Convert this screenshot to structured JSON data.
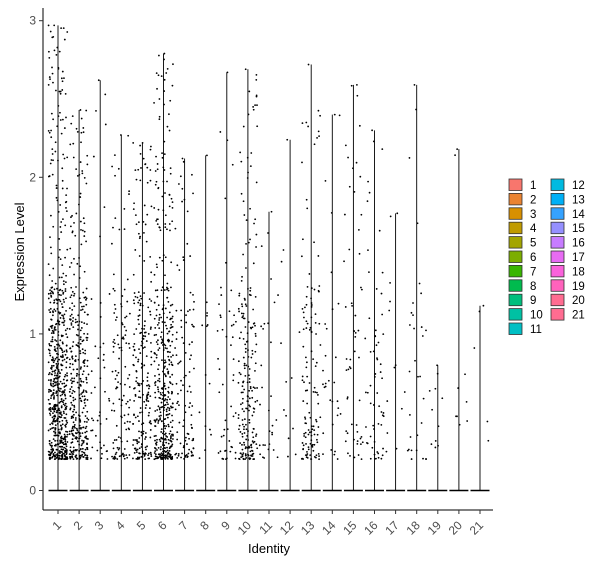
{
  "chart_data": {
    "type": "violin",
    "xlabel": "Identity",
    "ylabel": "Expression Level",
    "ylim": [
      -0.15,
      3.08
    ],
    "yticks": [
      "0",
      "1",
      "2",
      "3"
    ],
    "categories": [
      "1",
      "2",
      "3",
      "4",
      "5",
      "6",
      "7",
      "8",
      "9",
      "10",
      "11",
      "12",
      "13",
      "14",
      "15",
      "16",
      "17",
      "18",
      "19",
      "20",
      "21"
    ],
    "max_values": [
      2.97,
      2.43,
      2.62,
      2.27,
      2.22,
      2.79,
      2.12,
      2.14,
      2.67,
      2.69,
      1.78,
      2.24,
      2.72,
      2.4,
      2.59,
      2.3,
      1.77,
      2.59,
      0.8,
      2.18,
      1.18
    ],
    "point_counts": [
      650,
      360,
      45,
      120,
      230,
      420,
      110,
      14,
      50,
      220,
      30,
      12,
      130,
      30,
      55,
      60,
      12,
      30,
      10,
      8,
      4
    ],
    "legend": {
      "entries": [
        "1",
        "2",
        "3",
        "4",
        "5",
        "6",
        "7",
        "8",
        "9",
        "10",
        "11",
        "12",
        "13",
        "14",
        "15",
        "16",
        "17",
        "18",
        "19",
        "20",
        "21"
      ],
      "colors": [
        "#F8766D",
        "#EA8331",
        "#D89000",
        "#C09B00",
        "#A3A500",
        "#7CAE00",
        "#39B600",
        "#00BB4E",
        "#00BF7D",
        "#00C1A3",
        "#00BFC4",
        "#00BAE0",
        "#00B0F6",
        "#35A2FF",
        "#9590FF",
        "#C77CFF",
        "#E76BF3",
        "#FA62DB",
        "#FF62BC",
        "#FF6C91",
        "#FF6C91"
      ]
    },
    "grid": false
  }
}
